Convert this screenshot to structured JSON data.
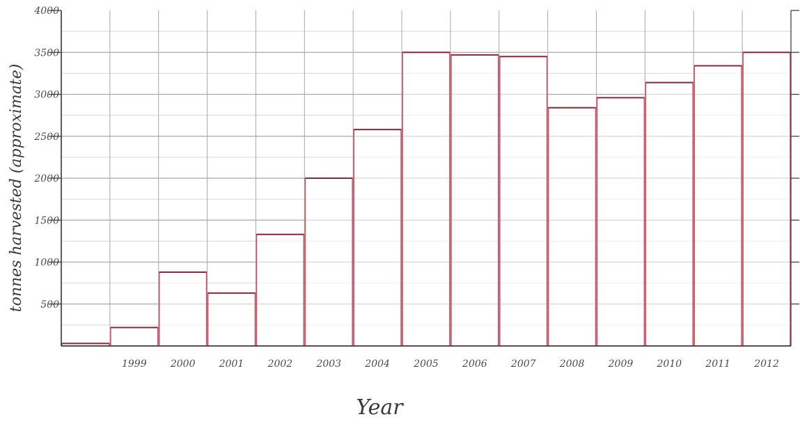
{
  "chart_data": {
    "type": "bar",
    "categories": [
      "",
      "1999",
      "2000",
      "2001",
      "2002",
      "2003",
      "2004",
      "2005",
      "2006",
      "2007",
      "2008",
      "2009",
      "2010",
      "2011",
      "2012"
    ],
    "values": [
      30,
      220,
      880,
      630,
      1330,
      2000,
      2580,
      3500,
      3470,
      3450,
      2840,
      2960,
      3140,
      3340,
      3500
    ],
    "title": "",
    "xlabel": "Year",
    "ylabel": "tonnes harvested (approximate)",
    "ylim": [
      0,
      4000
    ],
    "yticks": [
      500,
      1000,
      1500,
      2000,
      2500,
      3000,
      3500,
      4000
    ],
    "ytick_labels": [
      "500",
      "1000",
      "1500",
      "2000",
      "2500",
      "3000",
      "3500",
      "4000"
    ],
    "grid": true,
    "legend": "none",
    "colors": {
      "bar_stroke": "#cc5566",
      "bar_top": "#8a2a3a",
      "axis": "#333333",
      "grid_major": "#a8a8a8",
      "grid_minor": "#d8d8d8"
    }
  }
}
